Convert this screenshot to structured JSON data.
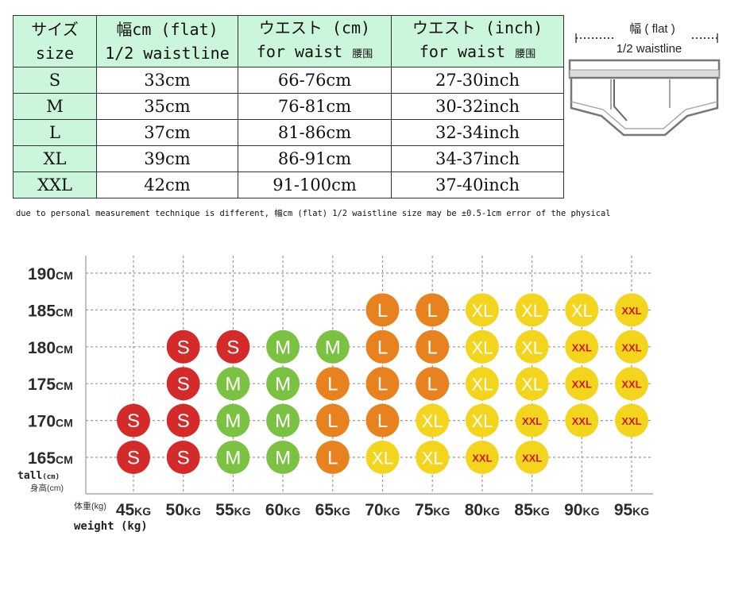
{
  "table": {
    "headers": [
      {
        "line1": "サイズ",
        "line2": "size",
        "line2_cjk": ""
      },
      {
        "line1": "幅cm (flat)",
        "line2": "1/2 waistline",
        "line2_cjk": ""
      },
      {
        "line1": "ウエスト (cm)",
        "line2": "for waist ",
        "line2_cjk": "腰围"
      },
      {
        "line1": "ウエスト (inch)",
        "line2": "for waist ",
        "line2_cjk": "腰围"
      }
    ],
    "rows": [
      {
        "size": "S",
        "flat": "33cm",
        "waist_cm": "66-76cm",
        "waist_inch": "27-30inch"
      },
      {
        "size": "M",
        "flat": "35cm",
        "waist_cm": "76-81cm",
        "waist_inch": "30-32inch"
      },
      {
        "size": "L",
        "flat": "37cm",
        "waist_cm": "81-86cm",
        "waist_inch": "32-34inch"
      },
      {
        "size": "XL",
        "flat": "39cm",
        "waist_cm": "86-91cm",
        "waist_inch": "34-37inch"
      },
      {
        "size": "XXL",
        "flat": "42cm",
        "waist_cm": "91-100cm",
        "waist_inch": "37-40inch"
      }
    ]
  },
  "illustration": {
    "flat_label": "幅 ( flat )",
    "waist_label": "1/2 waistline"
  },
  "note": "due to personal measurement technique is different, 幅cm (flat) 1/2 waistline size may be ±0.5-1cm error of the physical",
  "chart_data": {
    "type": "table",
    "y_axis": {
      "label": "tall",
      "label_unit": "(cm)",
      "label_cjk": "身高(cm)",
      "unit": "CM",
      "values": [
        190,
        185,
        180,
        175,
        170,
        165
      ]
    },
    "x_axis": {
      "label": "weight (kg)",
      "label_cjk": "体重(kg)",
      "unit": "KG",
      "values": [
        45,
        50,
        55,
        60,
        65,
        70,
        75,
        80,
        85,
        90,
        95
      ]
    },
    "colors": {
      "S": "#d42a2a",
      "M": "#7cc242",
      "L": "#e8821e",
      "XL": "#f3d51d",
      "XXL": "#f3d51d"
    },
    "cells": {
      "185": [
        null,
        null,
        null,
        null,
        null,
        "L",
        "L",
        "XL",
        "XL",
        "XL",
        "XXL"
      ],
      "180": [
        null,
        "S",
        "S",
        "M",
        "M",
        "L",
        "L",
        "XL",
        "XL",
        "XXL",
        "XXL"
      ],
      "175": [
        null,
        "S",
        "M",
        "M",
        "L",
        "L",
        "L",
        "XL",
        "XL",
        "XXL",
        "XXL"
      ],
      "170": [
        "S",
        "S",
        "M",
        "M",
        "L",
        "L",
        "XL",
        "XL",
        "XXL",
        "XXL",
        "XXL"
      ],
      "165": [
        "S",
        "S",
        "M",
        "M",
        "L",
        "XL",
        "XL",
        "XXL",
        "XXL",
        null,
        null
      ]
    }
  }
}
